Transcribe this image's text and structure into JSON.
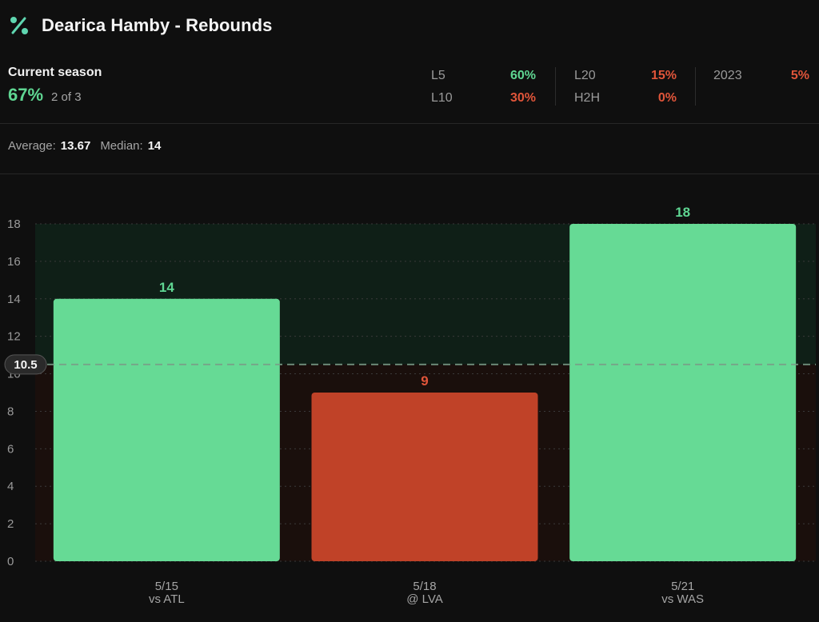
{
  "header": {
    "title": "Dearica Hamby - Rebounds",
    "icon": "percent-icon"
  },
  "season": {
    "label": "Current season",
    "pct": "67%",
    "count": "2 of 3"
  },
  "stats": [
    {
      "key": "L5",
      "value": "60%",
      "color": "#5fd692"
    },
    {
      "key": "L10",
      "value": "30%",
      "color": "#e0553a"
    },
    {
      "key": "L20",
      "value": "15%",
      "color": "#e0553a"
    },
    {
      "key": "H2H",
      "value": "0%",
      "color": "#e0553a"
    },
    {
      "key": "2023",
      "value": "5%",
      "color": "#e0553a"
    }
  ],
  "summary": {
    "average_label": "Average:",
    "average_value": "13.67",
    "median_label": "Median:",
    "median_value": "14"
  },
  "colors": {
    "over": "#66da95",
    "under": "#c04228",
    "over_label": "#5fd692",
    "under_label": "#e0553a"
  },
  "chart_data": {
    "type": "bar",
    "title": "",
    "xlabel": "",
    "ylabel": "",
    "ylim": [
      0,
      18
    ],
    "yticks": [
      0,
      2,
      4,
      6,
      8,
      10,
      12,
      14,
      16,
      18
    ],
    "grid": true,
    "line": {
      "value": 10.5,
      "label": "10.5"
    },
    "categories": [
      {
        "date": "5/15",
        "opponent": "vs ATL"
      },
      {
        "date": "5/18",
        "opponent": "@ LVA"
      },
      {
        "date": "5/21",
        "opponent": "vs WAS"
      }
    ],
    "values": [
      14,
      9,
      18
    ]
  }
}
